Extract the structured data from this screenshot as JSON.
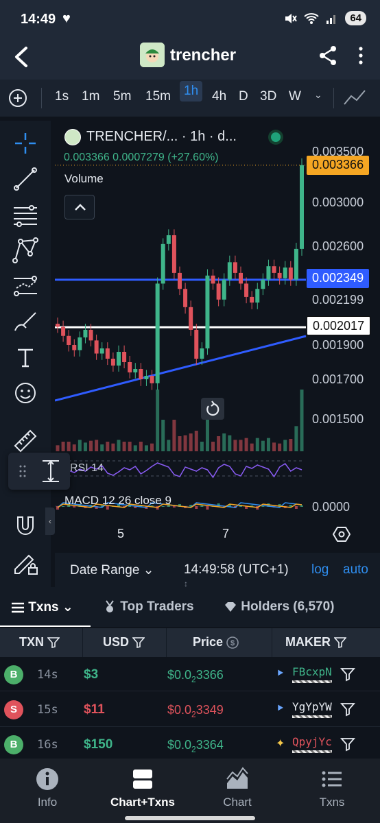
{
  "status": {
    "time": "14:49",
    "battery": "64"
  },
  "header": {
    "title": "trencher"
  },
  "timeframes": [
    "1s",
    "1m",
    "5m",
    "15m",
    "1h",
    "4h",
    "D",
    "3D",
    "W"
  ],
  "active_timeframe": "1h",
  "chart": {
    "legend_title": "TRENCHER/... · 1h · d...",
    "ohlc": "0.003366  0.0007279 (+27.60%)",
    "volume_label": "Volume",
    "price_axis": [
      "0.003500",
      "0.003000",
      "0.002600",
      "0.002199",
      "0.001900",
      "0.001700",
      "0.001500"
    ],
    "tag_current": "0.003366",
    "tag_blue": "0.002349",
    "tag_white": "0.002017",
    "rsi_label": "RSI 14",
    "macd_label": "MACD 12 26 close 9",
    "macd_zero": "0.0000",
    "x_labels": [
      "5",
      "7"
    ],
    "date_range": "Date Range",
    "clock": "14:49:58 (UTC+1)",
    "log": "log",
    "auto": "auto",
    "colors": {
      "up": "#3fb58a",
      "down": "#e0535c",
      "current_tag": "#f5a623",
      "blue_line": "#2f5cff"
    }
  },
  "chart_data": {
    "type": "line",
    "title": "TRENCHER/... · 1h · d...",
    "xlabel": "",
    "ylabel": "",
    "x_ticks": [
      "5",
      "7"
    ],
    "y_ticks": [
      0.0015,
      0.0017,
      0.0019,
      0.002199,
      0.0026,
      0.003,
      0.0035
    ],
    "ylim": [
      0.0014,
      0.0036
    ],
    "series": [
      {
        "values": [
          0.00202,
          0.00196,
          0.0019,
          0.00187,
          0.00195,
          0.002,
          0.00193,
          0.00185,
          0.00188,
          0.00182,
          0.00178,
          0.00186,
          0.0018,
          0.00174,
          0.00176,
          0.0017,
          0.00172,
          0.00168,
          0.00232,
          0.00262,
          0.0027,
          0.0024,
          0.00228,
          0.00215,
          0.002,
          0.00182,
          0.00188,
          0.00238,
          0.00232,
          0.0022,
          0.00235,
          0.00248,
          0.0024,
          0.00232,
          0.00222,
          0.00218,
          0.00228,
          0.00235,
          0.00245,
          0.0024,
          0.00236,
          0.00244,
          0.00235,
          0.00258,
          0.003366
        ]
      }
    ],
    "lines": {
      "blue_horizontal": 0.002349,
      "white_horizontal": 0.002017
    }
  },
  "tabs": [
    {
      "label": "Txns"
    },
    {
      "label": "Top Traders"
    },
    {
      "label": "Holders (6,570)"
    }
  ],
  "table": {
    "headers": [
      "TXN",
      "USD",
      "Price",
      "MAKER"
    ],
    "rows": [
      {
        "type": "B",
        "age": "14s",
        "usd": "$3",
        "price_a": "$0.0",
        "price_sub": "2",
        "price_b": "3366",
        "maker": "FBcxpN"
      },
      {
        "type": "S",
        "age": "15s",
        "usd": "$11",
        "price_a": "$0.0",
        "price_sub": "2",
        "price_b": "3349",
        "maker": "YgYpYW"
      },
      {
        "type": "B",
        "age": "16s",
        "usd": "$150",
        "price_a": "$0.0",
        "price_sub": "2",
        "price_b": "3364",
        "maker": "QpyjYc"
      }
    ]
  },
  "nav": [
    {
      "label": "Info",
      "icon": "info-icon"
    },
    {
      "label": "Chart+Txns",
      "icon": "chart-txns-icon"
    },
    {
      "label": "Chart",
      "icon": "area-chart-icon"
    },
    {
      "label": "Txns",
      "icon": "list-icon"
    }
  ]
}
